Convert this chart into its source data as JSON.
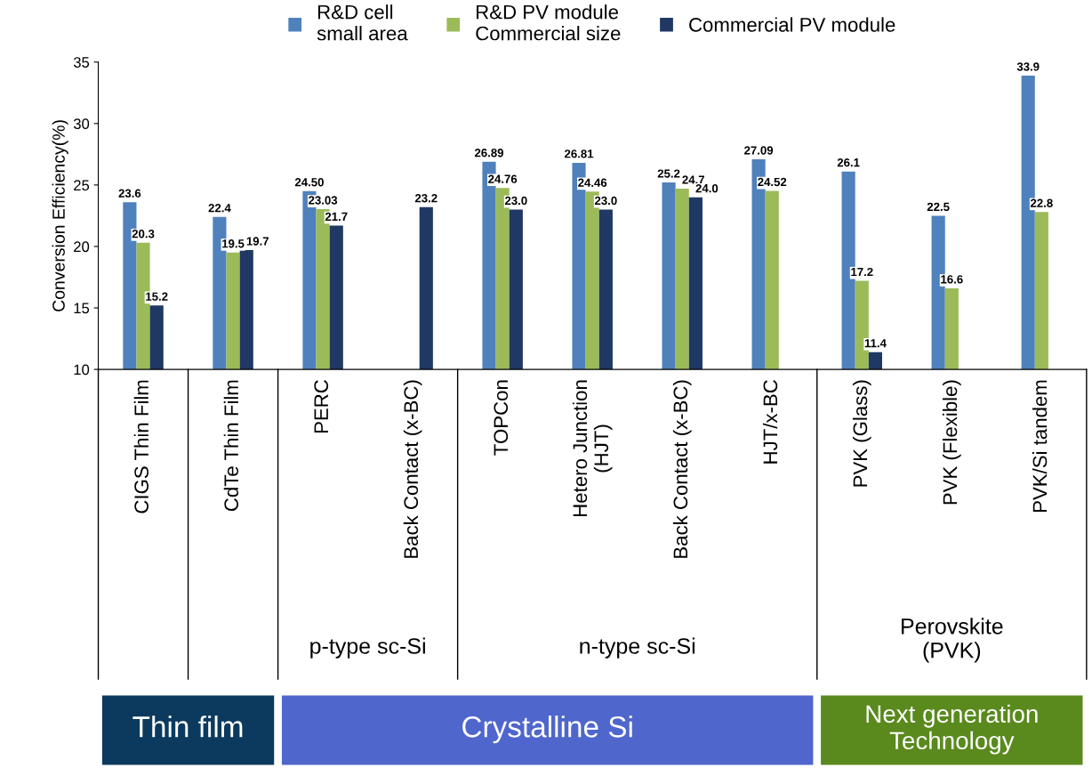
{
  "chart_data": {
    "type": "bar",
    "ylabel": "Conversion Efficiency(%)",
    "categories": [
      "CIGS Thin Film",
      "CdTe Thin Film",
      "PERC",
      "Back Contact (x-BC)",
      "TOPCon",
      "Hetero Junction\n(HJT)",
      "Back Contact (x-BC)",
      "HJT/x-BC",
      "PVK (Glass)",
      "PVK (Flexible)",
      "PVK/Si tandem"
    ],
    "series": [
      {
        "name": "R&D cell\nsmall area",
        "color": "#4f81bd",
        "values": [
          23.6,
          22.4,
          24.5,
          null,
          26.89,
          26.81,
          25.2,
          27.09,
          26.1,
          22.5,
          33.9
        ],
        "value_labels": [
          "23.6",
          "22.4",
          "24.50",
          null,
          "26.89",
          "26.81",
          "25.2",
          "27.09",
          "26.1",
          "22.5",
          "33.9"
        ]
      },
      {
        "name": "R&D PV module\nCommercial size",
        "color": "#9bbb59",
        "values": [
          20.3,
          19.5,
          23.03,
          null,
          24.76,
          24.46,
          24.7,
          24.52,
          17.2,
          16.6,
          22.8
        ],
        "value_labels": [
          "20.3",
          "19.5",
          "23.03",
          null,
          "24.76",
          "24.46",
          "24.7",
          "24.52",
          "17.2",
          "16.6",
          "22.8"
        ]
      },
      {
        "name": "Commercial PV module",
        "color": "#1f3864",
        "values": [
          15.2,
          19.7,
          21.7,
          23.2,
          23.0,
          23.0,
          24.0,
          null,
          11.4,
          null,
          null
        ],
        "value_labels": [
          "15.2",
          "19.7",
          "21.7",
          "23.2",
          "23.0",
          "23.0",
          "24.0",
          null,
          "11.4",
          null,
          null
        ]
      }
    ],
    "ylim": [
      10,
      35
    ],
    "yticks": [
      10,
      15,
      20,
      25,
      30,
      35
    ],
    "grid": false,
    "legend": "top",
    "annotations": [
      "p-type sc-Si",
      "n-type sc-Si",
      "Perovskite\n(PVK)",
      "Thin film",
      "Crystalline Si",
      "Next generation\nTechnology"
    ]
  }
}
